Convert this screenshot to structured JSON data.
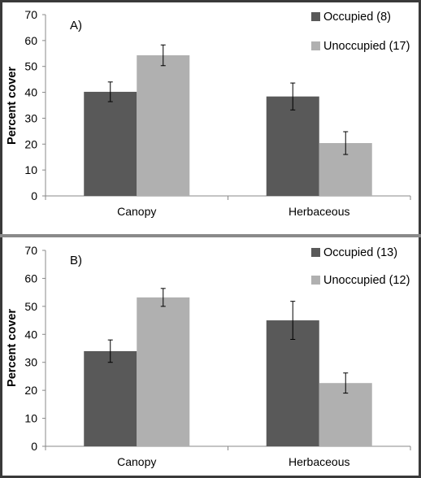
{
  "chart_data": [
    {
      "type": "bar",
      "panel_label": "A)",
      "categories": [
        "Canopy",
        "Herbaceous"
      ],
      "series": [
        {
          "name": "Occupied (8)",
          "color": "#595959",
          "values": [
            40.2,
            38.4
          ],
          "errors": [
            3.8,
            5.2
          ]
        },
        {
          "name": "Unoccupied (17)",
          "color": "#b0b0b0",
          "values": [
            54.3,
            20.4
          ],
          "errors": [
            4.0,
            4.4
          ]
        }
      ],
      "ylabel": "Percent cover",
      "ylim": [
        0,
        70
      ],
      "yticks": [
        "0",
        "10",
        "20",
        "30",
        "40",
        "50",
        "60",
        "70"
      ],
      "grid": false,
      "legend_position": "top-right"
    },
    {
      "type": "bar",
      "panel_label": "B)",
      "categories": [
        "Canopy",
        "Herbaceous"
      ],
      "series": [
        {
          "name": "Occupied (13)",
          "color": "#595959",
          "values": [
            34.0,
            45.0
          ],
          "errors": [
            4.0,
            6.8
          ]
        },
        {
          "name": "Unoccupied (12)",
          "color": "#b0b0b0",
          "values": [
            53.2,
            22.6
          ],
          "errors": [
            3.2,
            3.6
          ]
        }
      ],
      "ylabel": "Percent cover",
      "ylim": [
        0,
        70
      ],
      "yticks": [
        "0",
        "10",
        "20",
        "30",
        "40",
        "50",
        "60",
        "70"
      ],
      "grid": false,
      "legend_position": "top-right"
    }
  ]
}
